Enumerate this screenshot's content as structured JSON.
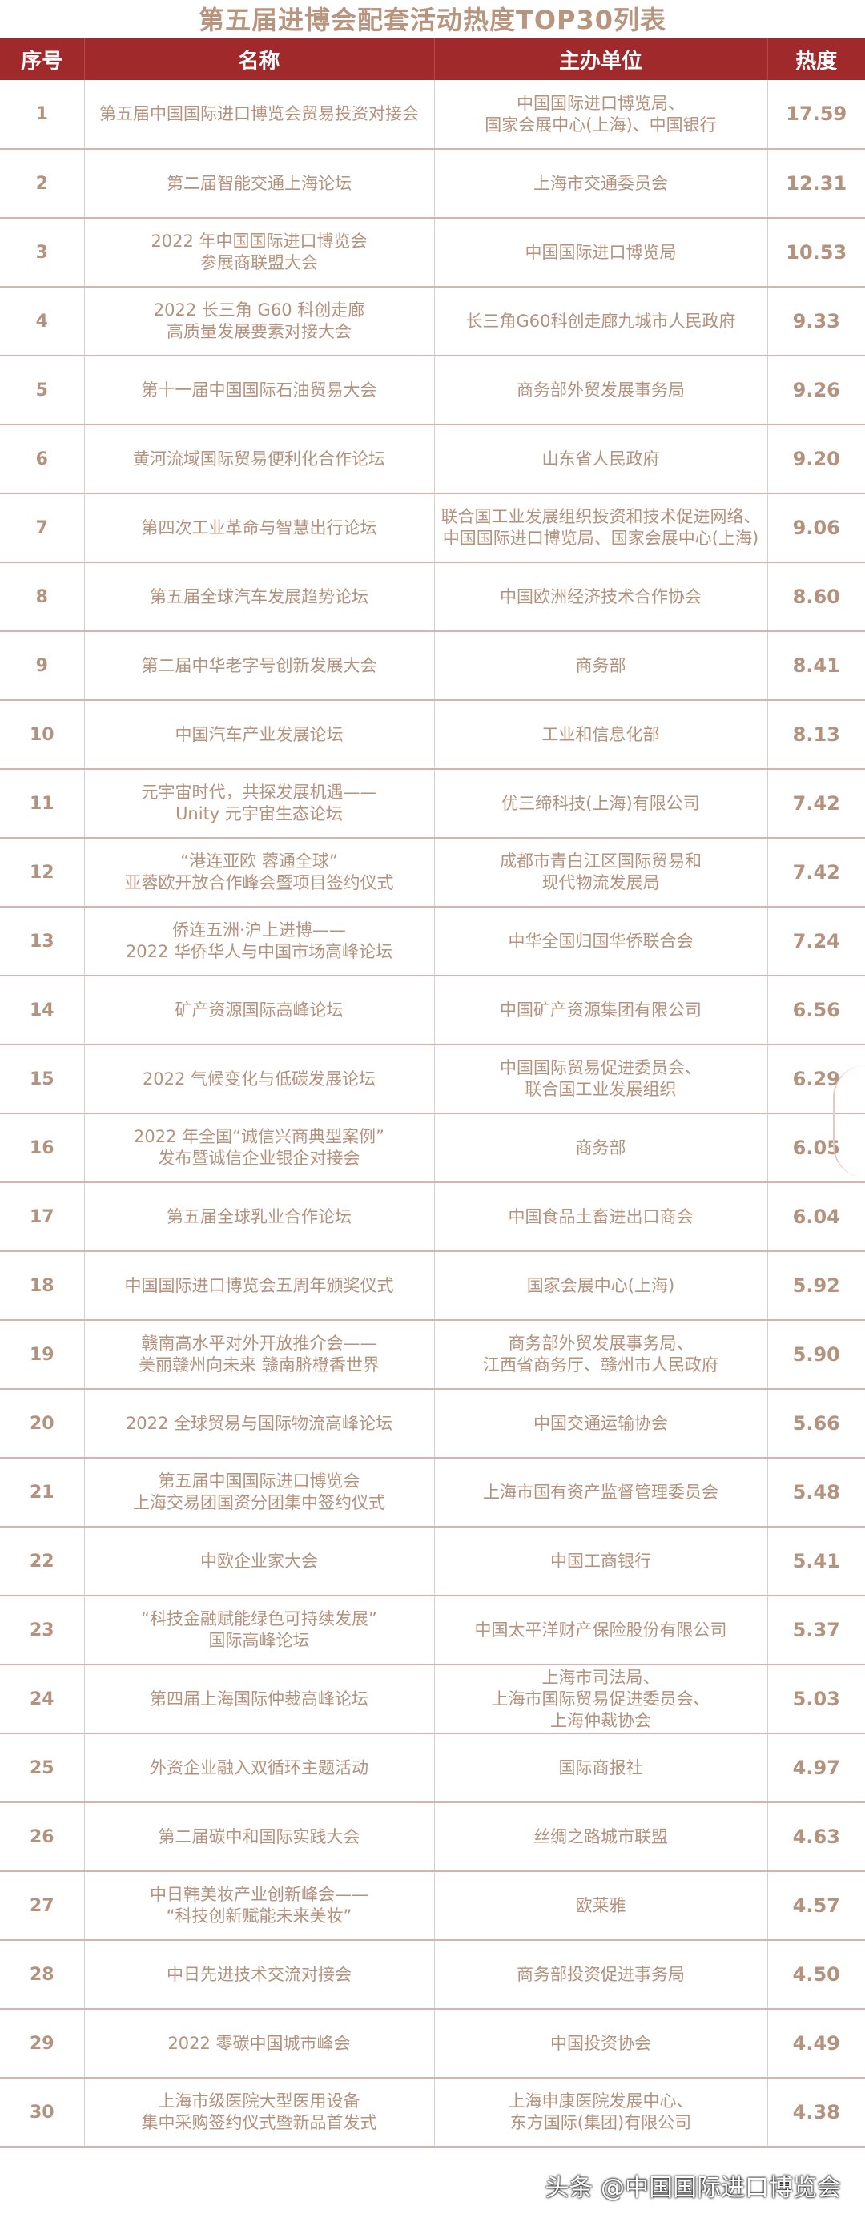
{
  "title": "第五届进博会配套活动热度TOP30列表",
  "headers": [
    "序号",
    "名称",
    "主办单位",
    "热度"
  ],
  "rows": [
    [
      "1",
      "第五届中国国际进口博览会贸易投资对接会",
      "中国国际进口博览局、\n国家会展中心(上海)、中国银行",
      "17.59"
    ],
    [
      "2",
      "第二届智能交通上海论坛",
      "上海市交通委员会",
      "12.31"
    ],
    [
      "3",
      "2022 年中国国际进口博览会\n参展商联盟大会",
      "中国国际进口博览局",
      "10.53"
    ],
    [
      "4",
      "2022 长三角 G60 科创走廊\n高质量发展要素对接大会",
      "长三角G60科创走廊九城市人民政府",
      "9.33"
    ],
    [
      "5",
      "第十一届中国国际石油贸易大会",
      "商务部外贸发展事务局",
      "9.26"
    ],
    [
      "6",
      "黄河流域国际贸易便利化合作论坛",
      "山东省人民政府",
      "9.20"
    ],
    [
      "7",
      "第四次工业革命与智慧出行论坛",
      "联合国工业发展组织投资和技术促进网络、\n中国国际进口博览局、国家会展中心(上海)",
      "9.06"
    ],
    [
      "8",
      "第五届全球汽车发展趋势论坛",
      "中国欧洲经济技术合作协会",
      "8.60"
    ],
    [
      "9",
      "第二届中华老字号创新发展大会",
      "商务部",
      "8.41"
    ],
    [
      "10",
      "中国汽车产业发展论坛",
      "工业和信息化部",
      "8.13"
    ],
    [
      "11",
      "元宇宙时代，共探发展机遇——\nUnity 元宇宙生态论坛",
      "优三缔科技(上海)有限公司",
      "7.42"
    ],
    [
      "12",
      "“港连亚欧 蓉通全球”\n亚蓉欧开放合作峰会暨项目签约仪式",
      "成都市青白江区国际贸易和\n现代物流发展局",
      "7.42"
    ],
    [
      "13",
      "侨连五洲·沪上进博——\n2022 华侨华人与中国市场高峰论坛",
      "中华全国归国华侨联合会",
      "7.24"
    ],
    [
      "14",
      "矿产资源国际高峰论坛",
      "中国矿产资源集团有限公司",
      "6.56"
    ],
    [
      "15",
      "2022 气候变化与低碳发展论坛",
      "中国国际贸易促进委员会、\n联合国工业发展组织",
      "6.29"
    ],
    [
      "16",
      "2022 年全国“诚信兴商典型案例”\n发布暨诚信企业银企对接会",
      "商务部",
      "6.05"
    ],
    [
      "17",
      "第五届全球乳业合作论坛",
      "中国食品土畜进出口商会",
      "6.04"
    ],
    [
      "18",
      "中国国际进口博览会五周年颁奖仪式",
      "国家会展中心(上海)",
      "5.92"
    ],
    [
      "19",
      "赣南高水平对外开放推介会——\n美丽赣州向未来 赣南脐橙香世界",
      "商务部外贸发展事务局、\n江西省商务厅、赣州市人民政府",
      "5.90"
    ],
    [
      "20",
      "2022 全球贸易与国际物流高峰论坛",
      "中国交通运输协会",
      "5.66"
    ],
    [
      "21",
      "第五届中国国际进口博览会\n上海交易团国资分团集中签约仪式",
      "上海市国有资产监督管理委员会",
      "5.48"
    ],
    [
      "22",
      "中欧企业家大会",
      "中国工商银行",
      "5.41"
    ],
    [
      "23",
      "“科技金融赋能绿色可持续发展”\n国际高峰论坛",
      "中国太平洋财产保险股份有限公司",
      "5.37"
    ],
    [
      "24",
      "第四届上海国际仲裁高峰论坛",
      "上海市司法局、\n上海市国际贸易促进委员会、\n上海仲裁协会",
      "5.03"
    ],
    [
      "25",
      "外资企业融入双循环主题活动",
      "国际商报社",
      "4.97"
    ],
    [
      "26",
      "第二届碳中和国际实践大会",
      "丝绸之路城市联盟",
      "4.63"
    ],
    [
      "27",
      "中日韩美妆产业创新峰会——\n“科技创新赋能未来美妆”",
      "欧莱雅",
      "4.57"
    ],
    [
      "28",
      "中日先进技术交流对接会",
      "商务部投资促进事务局",
      "4.50"
    ],
    [
      "29",
      "2022 零碳中国城市峰会",
      "中国投资协会",
      "4.49"
    ],
    [
      "30",
      "上海市级医院大型医用设备\n集中采购签约仪式暨新品首发式",
      "上海申康医院发展中心、\n东方国际(集团)有限公司",
      "4.38"
    ]
  ],
  "watermark": "头条 @中国国际进口博览会",
  "colors": {
    "header_bg": "#a0292c",
    "text": "#b3927e",
    "row_border": "#d9b1b1"
  }
}
